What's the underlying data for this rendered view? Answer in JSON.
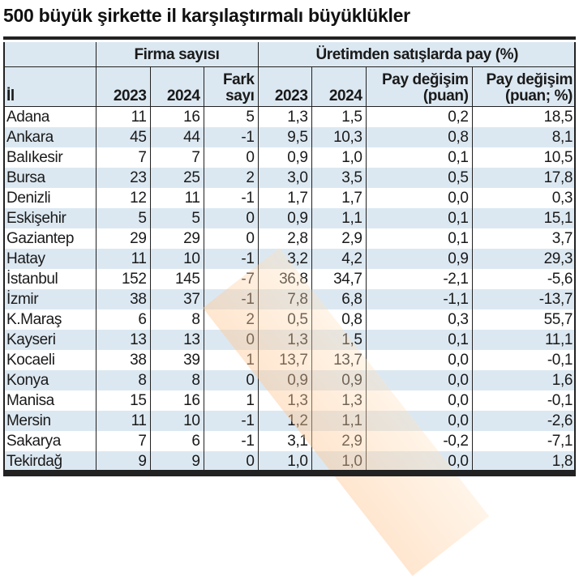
{
  "title": "500 büyük şirkette il karşılaştırmalı büyüklükler",
  "groups": {
    "firma": "Firma sayısı",
    "uretim": "Üretimden satışlarda pay (%)"
  },
  "columns": [
    "İl",
    "2023",
    "2024",
    "Fark sayı",
    "2023",
    "2024",
    "Pay değişim (puan)",
    "Pay değişim (puan; %)"
  ],
  "rows": [
    [
      "Adana",
      "11",
      "16",
      "5",
      "1,3",
      "1,5",
      "0,2",
      "18,5"
    ],
    [
      "Ankara",
      "45",
      "44",
      "-1",
      "9,5",
      "10,3",
      "0,8",
      "8,1"
    ],
    [
      "Balıkesir",
      "7",
      "7",
      "0",
      "0,9",
      "1,0",
      "0,1",
      "10,5"
    ],
    [
      "Bursa",
      "23",
      "25",
      "2",
      "3,0",
      "3,5",
      "0,5",
      "17,8"
    ],
    [
      "Denizli",
      "12",
      "11",
      "-1",
      "1,7",
      "1,7",
      "0,0",
      "0,3"
    ],
    [
      "Eskişehir",
      "5",
      "5",
      "0",
      "0,9",
      "1,1",
      "0,1",
      "15,1"
    ],
    [
      "Gaziantep",
      "29",
      "29",
      "0",
      "2,8",
      "2,9",
      "0,1",
      "3,7"
    ],
    [
      "Hatay",
      "11",
      "10",
      "-1",
      "3,2",
      "4,2",
      "0,9",
      "29,3"
    ],
    [
      "İstanbul",
      "152",
      "145",
      "-7",
      "36,8",
      "34,7",
      "-2,1",
      "-5,6"
    ],
    [
      "İzmir",
      "38",
      "37",
      "-1",
      "7,8",
      "6,8",
      "-1,1",
      "-13,7"
    ],
    [
      "K.Maraş",
      "6",
      "8",
      "2",
      "0,5",
      "0,8",
      "0,3",
      "55,7"
    ],
    [
      "Kayseri",
      "13",
      "13",
      "0",
      "1,3",
      "1,5",
      "0,1",
      "11,1"
    ],
    [
      "Kocaeli",
      "38",
      "39",
      "1",
      "13,7",
      "13,7",
      "0,0",
      "-0,1"
    ],
    [
      "Konya",
      "8",
      "8",
      "0",
      "0,9",
      "0,9",
      "0,0",
      "1,6"
    ],
    [
      "Manisa",
      "15",
      "16",
      "1",
      "1,3",
      "1,3",
      "0,0",
      "-0,1"
    ],
    [
      "Mersin",
      "11",
      "10",
      "-1",
      "1,2",
      "1,1",
      "0,0",
      "-2,6"
    ],
    [
      "Sakarya",
      "7",
      "6",
      "-1",
      "3,1",
      "2,9",
      "-0,2",
      "-7,1"
    ],
    [
      "Tekirdağ",
      "9",
      "9",
      "0",
      "1,0",
      "1,0",
      "0,0",
      "1,8"
    ]
  ]
}
